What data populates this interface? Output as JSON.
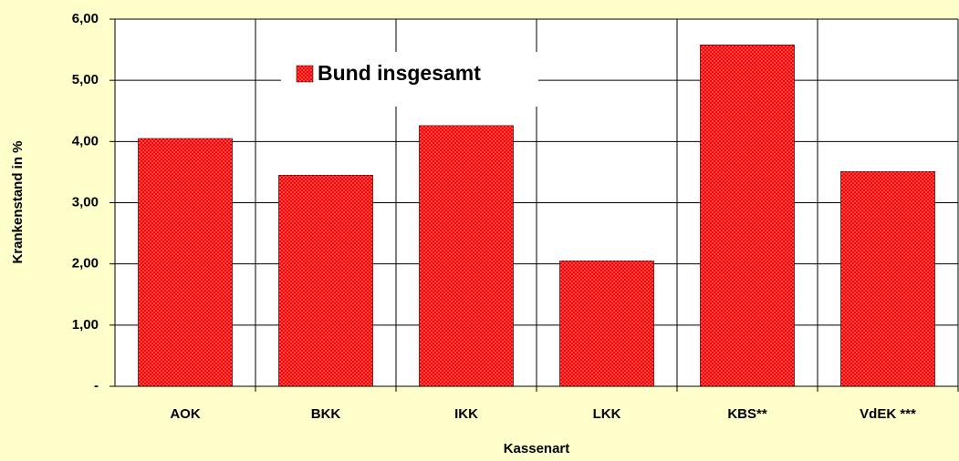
{
  "chart_data": {
    "type": "bar",
    "x_label": "Kassenart",
    "y_label": "Krankenstand in %",
    "categories": [
      "AOK",
      "BKK",
      "IKK",
      "LKK",
      "KBS**",
      "VdEK ***"
    ],
    "series": [
      {
        "name": "Bund insgesamt",
        "color": "#ff0000",
        "values": [
          4.05,
          3.45,
          4.26,
          2.05,
          5.58,
          3.51
        ]
      }
    ],
    "ylim": [
      0,
      6
    ],
    "yticks": [
      {
        "value": 0,
        "label": "-"
      },
      {
        "value": 1,
        "label": "1,00"
      },
      {
        "value": 2,
        "label": "2,00"
      },
      {
        "value": 3,
        "label": "3,00"
      },
      {
        "value": 4,
        "label": "4,00"
      },
      {
        "value": 5,
        "label": "5,00"
      },
      {
        "value": 6,
        "label": "6,00"
      }
    ],
    "grid": true
  }
}
